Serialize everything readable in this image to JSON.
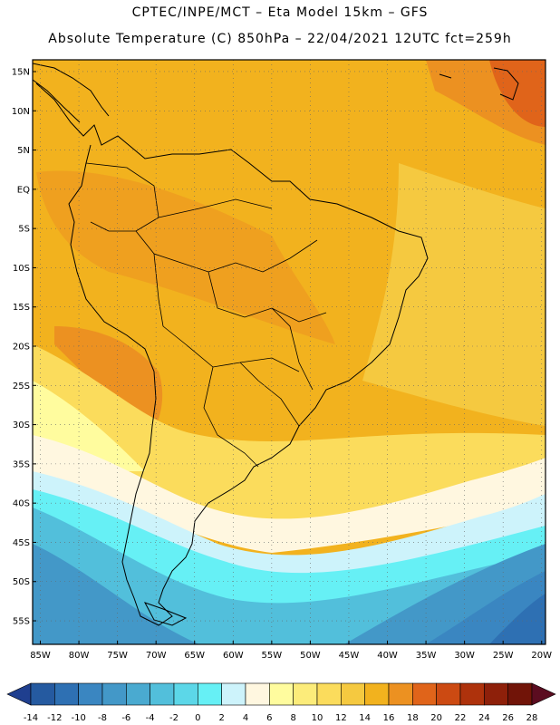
{
  "header": {
    "line1": "CPTEC/INPE/MCT –  Eta Model 15km – GFS",
    "line2": "Absolute Temperature (C) 850hPa – 22/04/2021 12UTC fct=259h"
  },
  "axes": {
    "lat_labels": [
      "15N",
      "10N",
      "5N",
      "EQ",
      "5S",
      "10S",
      "15S",
      "20S",
      "25S",
      "30S",
      "35S",
      "40S",
      "45S",
      "50S",
      "55S"
    ],
    "lat_values": [
      15,
      10,
      5,
      0,
      -5,
      -10,
      -15,
      -20,
      -25,
      -30,
      -35,
      -40,
      -45,
      -50,
      -55
    ],
    "lon_labels": [
      "85W",
      "80W",
      "75W",
      "70W",
      "65W",
      "60W",
      "55W",
      "50W",
      "45W",
      "40W",
      "35W",
      "30W",
      "25W",
      "20W"
    ],
    "lon_values": [
      -85,
      -80,
      -75,
      -70,
      -65,
      -60,
      -55,
      -50,
      -45,
      -40,
      -35,
      -30,
      -25,
      -20
    ],
    "lat_range": [
      -58,
      16.5
    ],
    "lon_range": [
      -86,
      -19.5
    ],
    "grid": "dotted"
  },
  "colorbar": {
    "ticks": [
      "-14",
      "-12",
      "-10",
      "-8",
      "-6",
      "-4",
      "-2",
      "0",
      "2",
      "4",
      "6",
      "8",
      "10",
      "12",
      "14",
      "16",
      "18",
      "20",
      "22",
      "24",
      "26",
      "28"
    ],
    "colors": [
      "#1f3f8f",
      "#255aa0",
      "#2e70b3",
      "#3a86c1",
      "#4398c8",
      "#4aaad0",
      "#52bfdb",
      "#5cd7e8",
      "#66f0f5",
      "#cdf3fb",
      "#fff7e0",
      "#fffc9e",
      "#fcec7a",
      "#fbdc5c",
      "#f5c940",
      "#f2b21e",
      "#ec9121",
      "#e0641a",
      "#cc4a12",
      "#ae320c",
      "#8e200a",
      "#711408",
      "#5b0c20"
    ]
  },
  "temperature_zones": [
    {
      "name": "north-orange",
      "color": "#f2b21e"
    },
    {
      "name": "atlantic-amber",
      "color": "#f5c940"
    },
    {
      "name": "southern-cream",
      "color": "#fff7e0"
    },
    {
      "name": "southern-cyan",
      "color": "#66f0f5"
    },
    {
      "name": "deep-south-blue",
      "color": "#3a86c1"
    }
  ]
}
